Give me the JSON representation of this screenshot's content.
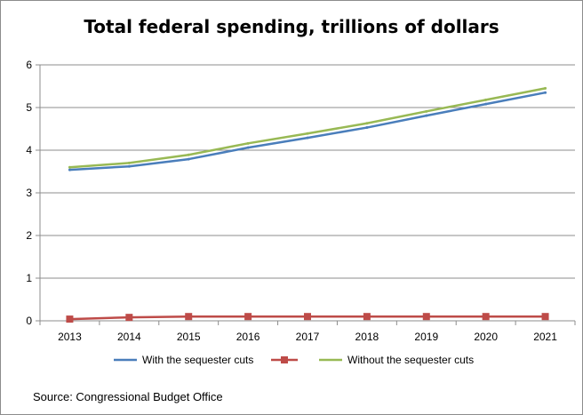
{
  "chart_data": {
    "type": "line",
    "title": "Total federal spending, trillions of dollars",
    "xlabel": "",
    "ylabel": "",
    "categories": [
      "2013",
      "2014",
      "2015",
      "2016",
      "2017",
      "2018",
      "2019",
      "2020",
      "2021"
    ],
    "ylim": [
      0,
      6
    ],
    "yticks": [
      "0",
      "1",
      "2",
      "3",
      "4",
      "5",
      "6"
    ],
    "grid": true,
    "legend_position": "bottom",
    "series": [
      {
        "name": "With the sequester cuts",
        "color": "#4a7ebb",
        "marker": "none",
        "values": [
          3.54,
          3.62,
          3.79,
          4.06,
          4.29,
          4.53,
          4.81,
          5.08,
          5.35
        ]
      },
      {
        "name": "",
        "color": "#be4b48",
        "marker": "square",
        "values": [
          0.04,
          0.08,
          0.1,
          0.1,
          0.1,
          0.1,
          0.1,
          0.1,
          0.1
        ]
      },
      {
        "name": "Without the sequester cuts",
        "color": "#98b954",
        "marker": "none",
        "values": [
          3.6,
          3.7,
          3.89,
          4.16,
          4.39,
          4.63,
          4.91,
          5.18,
          5.45
        ]
      }
    ],
    "source": "Source: Congressional Budget Office"
  }
}
